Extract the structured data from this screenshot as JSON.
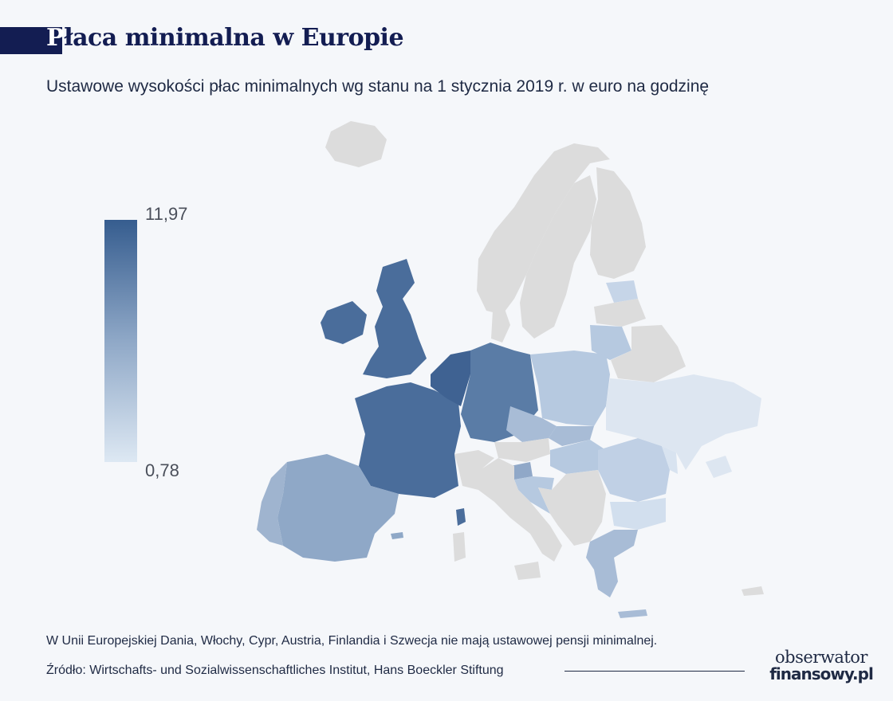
{
  "header": {
    "title_first": "P",
    "title_rest": "łaca minimalna w Europie",
    "subtitle": "Ustawowe wysokości płac minimalnych wg stanu na 1 stycznia 2019 r. w euro na godzinę"
  },
  "legend": {
    "max_label": "11,97",
    "min_label": "0,78",
    "max_value": 11.97,
    "min_value": 0.78,
    "color_high": "#365d8f",
    "color_low": "#dde8f3",
    "no_data_color": "#dcdcdc"
  },
  "map": {
    "region": "Europe",
    "shaded_countries": [
      "Ireland",
      "United Kingdom",
      "France",
      "Belgium",
      "Netherlands",
      "Luxembourg",
      "Germany",
      "Spain",
      "Portugal",
      "Poland",
      "Czechia",
      "Slovakia",
      "Hungary",
      "Slovenia",
      "Croatia",
      "Romania",
      "Bulgaria",
      "Greece",
      "Lithuania",
      "Latvia",
      "Estonia",
      "Ukraine",
      "Moldova"
    ],
    "no_data_countries": [
      "Iceland",
      "Norway",
      "Sweden",
      "Finland",
      "Denmark",
      "Italy",
      "Austria",
      "Switzerland",
      "Belarus",
      "Serbia",
      "Bosnia and Herzegovina",
      "Albania",
      "North Macedonia",
      "Montenegro",
      "Kosovo",
      "Cyprus"
    ]
  },
  "footer": {
    "note": "W Unii Europejskiej Dania, Włochy, Cypr, Austria, Finlandia i Szwecja nie mają ustawowej pensji minimalnej.",
    "source": "Źródło: Wirtschafts- und Sozialwissenschaftliches Institut, Hans Boeckler Stiftung",
    "logo_top": "obserwator",
    "logo_bottom": "finansowy.pl"
  }
}
